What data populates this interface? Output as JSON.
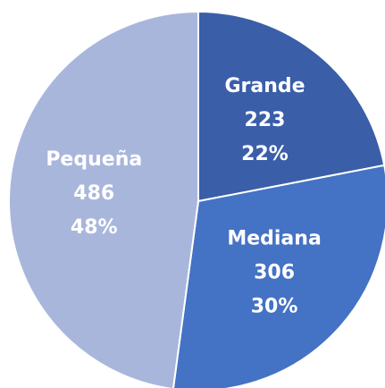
{
  "chart_data": {
    "type": "pie",
    "categories": [
      "Grande",
      "Mediana",
      "Pequeña"
    ],
    "values": [
      223,
      306,
      486
    ],
    "percent_labels": [
      "22%",
      "30%",
      "48%"
    ],
    "colors": [
      "#3a5ea8",
      "#4472c4",
      "#a9b6dc"
    ]
  }
}
